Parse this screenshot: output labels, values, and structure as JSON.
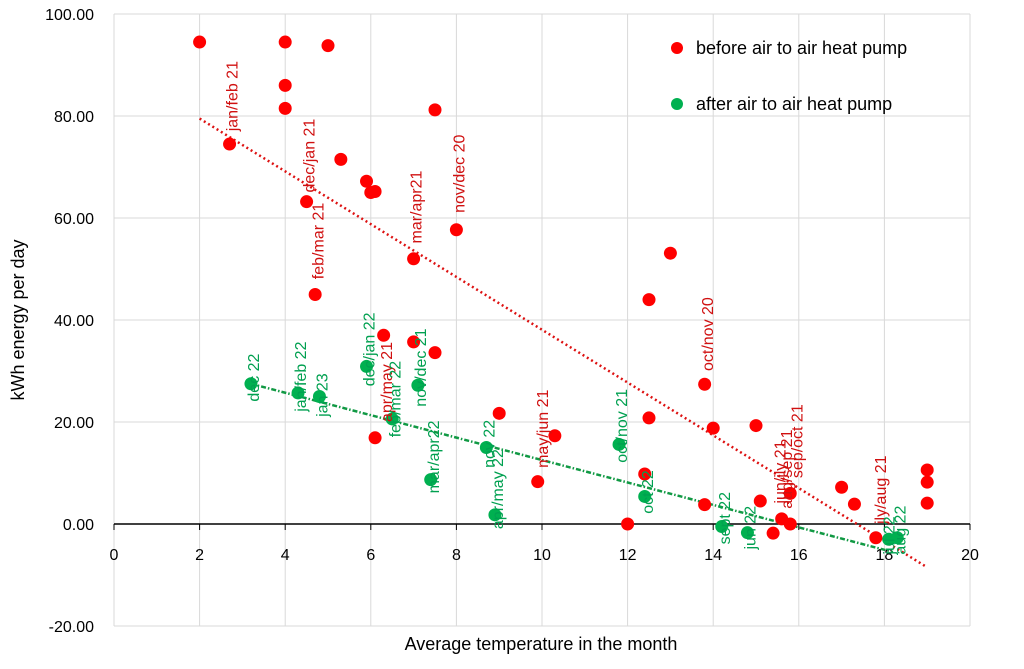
{
  "chart_data": {
    "type": "scatter",
    "title": "",
    "xlabel": "Average temperature in the month",
    "ylabel": "kWh energy per day",
    "xlim": [
      0,
      20
    ],
    "ylim": [
      -20,
      100
    ],
    "x_ticks": [
      "0",
      "2",
      "4",
      "6",
      "8",
      "10",
      "12",
      "14",
      "16",
      "18",
      "20"
    ],
    "y_ticks": [
      "-20.00",
      "0.00",
      "20.00",
      "40.00",
      "60.00",
      "80.00",
      "100.00"
    ],
    "x_tick_values": [
      0,
      2,
      4,
      6,
      8,
      10,
      12,
      14,
      16,
      18,
      20
    ],
    "y_tick_values": [
      -20,
      0,
      20,
      40,
      60,
      80,
      100
    ],
    "grid": true,
    "legend_position": "top-right",
    "series": [
      {
        "name": "before air to air heat pump",
        "color": "#ff0000",
        "trend_color": "#dd1111",
        "trendline": [
          [
            2.0,
            79.5
          ],
          [
            19.0,
            -8.5
          ]
        ],
        "points": [
          {
            "x": 2.0,
            "y": 94.5
          },
          {
            "x": 2.7,
            "y": 74.5
          },
          {
            "x": 4.0,
            "y": 94.5
          },
          {
            "x": 4.0,
            "y": 86.0
          },
          {
            "x": 4.0,
            "y": 81.5
          },
          {
            "x": 5.0,
            "y": 93.8
          },
          {
            "x": 5.3,
            "y": 71.5
          },
          {
            "x": 4.5,
            "y": 63.2
          },
          {
            "x": 4.7,
            "y": 45.0
          },
          {
            "x": 5.9,
            "y": 67.2
          },
          {
            "x": 6.0,
            "y": 65.0
          },
          {
            "x": 6.1,
            "y": 65.2
          },
          {
            "x": 7.5,
            "y": 81.2
          },
          {
            "x": 8.0,
            "y": 57.7
          },
          {
            "x": 7.0,
            "y": 52.0
          },
          {
            "x": 6.3,
            "y": 37.0
          },
          {
            "x": 7.0,
            "y": 35.7
          },
          {
            "x": 7.5,
            "y": 33.6
          },
          {
            "x": 6.1,
            "y": 16.9
          },
          {
            "x": 9.0,
            "y": 21.7
          },
          {
            "x": 9.9,
            "y": 8.3
          },
          {
            "x": 10.3,
            "y": 17.3
          },
          {
            "x": 12.0,
            "y": 0.0
          },
          {
            "x": 12.4,
            "y": 9.8
          },
          {
            "x": 12.5,
            "y": 44.0
          },
          {
            "x": 12.5,
            "y": 20.8
          },
          {
            "x": 13.0,
            "y": 53.1
          },
          {
            "x": 13.8,
            "y": 27.4
          },
          {
            "x": 13.8,
            "y": 3.8
          },
          {
            "x": 14.0,
            "y": 18.8
          },
          {
            "x": 15.0,
            "y": 19.3
          },
          {
            "x": 15.1,
            "y": 4.5
          },
          {
            "x": 15.4,
            "y": -1.8
          },
          {
            "x": 15.6,
            "y": 1.0
          },
          {
            "x": 15.8,
            "y": 6.0
          },
          {
            "x": 15.8,
            "y": 0.0
          },
          {
            "x": 17.0,
            "y": 7.2
          },
          {
            "x": 17.3,
            "y": 3.9
          },
          {
            "x": 17.8,
            "y": -2.7
          },
          {
            "x": 19.0,
            "y": 10.6
          },
          {
            "x": 19.0,
            "y": 8.2
          },
          {
            "x": 19.0,
            "y": 4.1
          }
        ],
        "labels": [
          {
            "text": "jan/feb 21",
            "x": 2.75,
            "y": 77
          },
          {
            "text": "dec/jan 21",
            "x": 4.55,
            "y": 65
          },
          {
            "text": "feb/mar 21",
            "x": 4.75,
            "y": 48
          },
          {
            "text": "nov/dec 20",
            "x": 8.05,
            "y": 61
          },
          {
            "text": "mar/apr21",
            "x": 7.05,
            "y": 55
          },
          {
            "text": "apr/may 21",
            "x": 6.35,
            "y": 20
          },
          {
            "text": "may/jun 21",
            "x": 10.0,
            "y": 11
          },
          {
            "text": "oct/nov 20",
            "x": 13.85,
            "y": 30
          },
          {
            "text": "jun/jly 21",
            "x": 15.55,
            "y": 4
          },
          {
            "text": "aug/sep 21",
            "x": 15.7,
            "y": 3
          },
          {
            "text": "sep/oct 21",
            "x": 15.95,
            "y": 9
          },
          {
            "text": "jly/aug 21",
            "x": 17.9,
            "y": 0
          }
        ]
      },
      {
        "name": "after air to air heat pump",
        "color": "#00b050",
        "trend_color": "#119944",
        "trendline": [
          [
            3.2,
            27.5
          ],
          [
            18.2,
            -5.5
          ]
        ],
        "points": [
          {
            "x": 3.2,
            "y": 27.5
          },
          {
            "x": 4.3,
            "y": 25.7
          },
          {
            "x": 4.8,
            "y": 25.0
          },
          {
            "x": 5.9,
            "y": 30.9
          },
          {
            "x": 6.5,
            "y": 20.6
          },
          {
            "x": 7.1,
            "y": 27.2
          },
          {
            "x": 7.4,
            "y": 8.7
          },
          {
            "x": 8.7,
            "y": 15.0
          },
          {
            "x": 8.9,
            "y": 1.8
          },
          {
            "x": 11.8,
            "y": 15.6
          },
          {
            "x": 12.4,
            "y": 5.4
          },
          {
            "x": 14.2,
            "y": -0.5
          },
          {
            "x": 14.8,
            "y": -1.7
          },
          {
            "x": 18.1,
            "y": -3.0
          },
          {
            "x": 18.3,
            "y": -2.7
          }
        ],
        "labels": [
          {
            "text": "dec 22",
            "x": 3.25,
            "y": 24
          },
          {
            "text": "jan/feb 22",
            "x": 4.35,
            "y": 22
          },
          {
            "text": "jan 23",
            "x": 4.85,
            "y": 21
          },
          {
            "text": "dec/jan 22",
            "x": 5.95,
            "y": 27
          },
          {
            "text": "feb/mar 22",
            "x": 6.55,
            "y": 17
          },
          {
            "text": "nov/dec 21",
            "x": 7.15,
            "y": 23
          },
          {
            "text": "mar/apr22",
            "x": 7.45,
            "y": 6
          },
          {
            "text": "nov 22",
            "x": 8.75,
            "y": 11
          },
          {
            "text": "apr/may 22",
            "x": 8.95,
            "y": -1
          },
          {
            "text": "oct/nov 21",
            "x": 11.85,
            "y": 12
          },
          {
            "text": "oct 22",
            "x": 12.45,
            "y": 2
          },
          {
            "text": "sept 22",
            "x": 14.25,
            "y": -4
          },
          {
            "text": "jun 22",
            "x": 14.85,
            "y": -5
          },
          {
            "text": "jul 22",
            "x": 18.1,
            "y": -6
          },
          {
            "text": "aug 22",
            "x": 18.35,
            "y": -6
          }
        ]
      }
    ]
  }
}
